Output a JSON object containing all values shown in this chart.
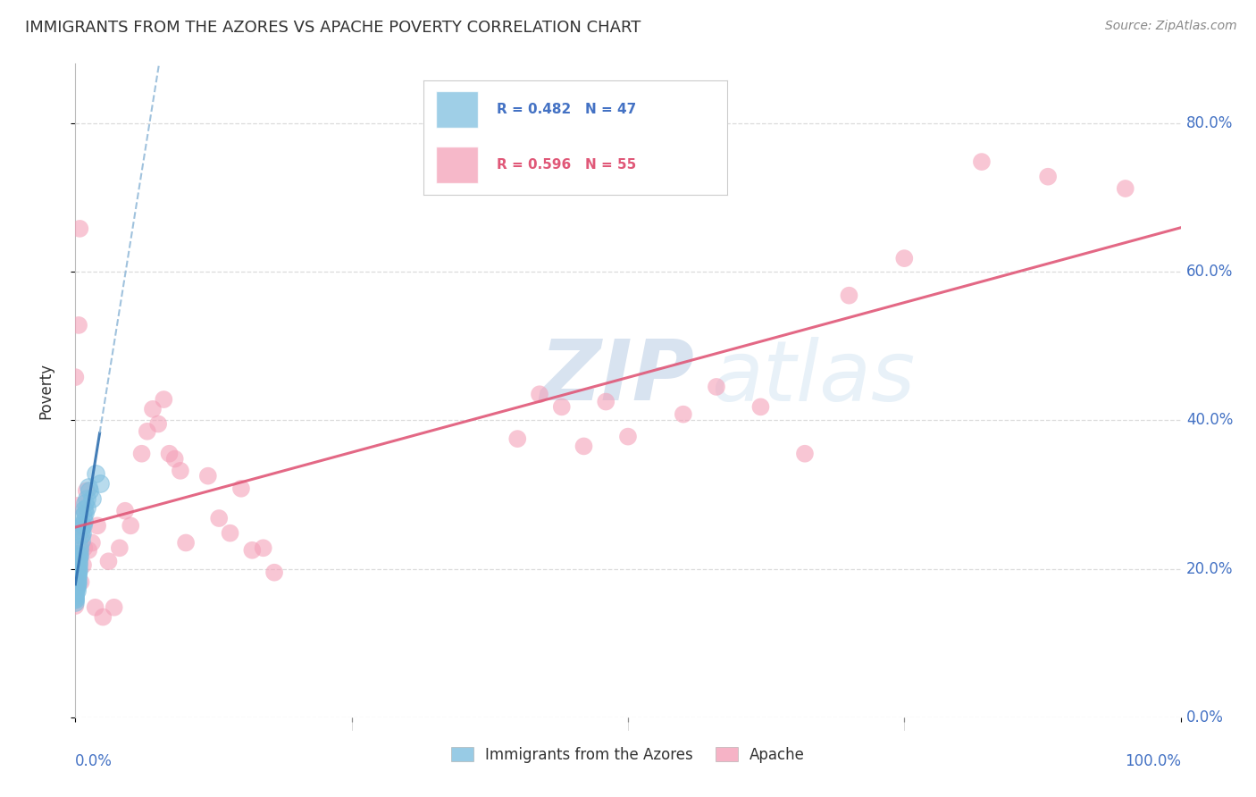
{
  "title": "IMMIGRANTS FROM THE AZORES VS APACHE POVERTY CORRELATION CHART",
  "source_text": "Source: ZipAtlas.com",
  "ylabel": "Poverty",
  "watermark_zip": "ZIP",
  "watermark_atlas": "atlas",
  "legend_blue_label": "Immigrants from the Azores",
  "legend_pink_label": "Apache",
  "R_blue": 0.482,
  "N_blue": 47,
  "R_pink": 0.596,
  "N_pink": 55,
  "blue_color": "#7fbfdf",
  "pink_color": "#f4a0b8",
  "blue_line_color": "#3070b0",
  "blue_dash_color": "#90b8d8",
  "pink_line_color": "#e05878",
  "axis_label_color": "#4472c4",
  "title_color": "#333333",
  "blue_x": [
    0.0,
    0.0,
    0.0,
    0.0,
    0.0,
    0.0,
    0.0,
    0.0,
    0.001,
    0.001,
    0.001,
    0.001,
    0.001,
    0.001,
    0.001,
    0.002,
    0.002,
    0.002,
    0.002,
    0.002,
    0.002,
    0.003,
    0.003,
    0.003,
    0.003,
    0.003,
    0.004,
    0.004,
    0.004,
    0.005,
    0.005,
    0.005,
    0.006,
    0.006,
    0.007,
    0.007,
    0.008,
    0.008,
    0.009,
    0.009,
    0.01,
    0.01,
    0.012,
    0.013,
    0.015,
    0.018,
    0.022
  ],
  "blue_y": [
    0.165,
    0.158,
    0.17,
    0.16,
    0.155,
    0.162,
    0.168,
    0.172,
    0.18,
    0.19,
    0.175,
    0.185,
    0.178,
    0.183,
    0.17,
    0.195,
    0.2,
    0.188,
    0.205,
    0.192,
    0.182,
    0.21,
    0.22,
    0.215,
    0.205,
    0.198,
    0.23,
    0.225,
    0.218,
    0.245,
    0.238,
    0.252,
    0.26,
    0.248,
    0.272,
    0.258,
    0.28,
    0.265,
    0.288,
    0.275,
    0.295,
    0.282,
    0.31,
    0.305,
    0.295,
    0.328,
    0.315
  ],
  "pink_x": [
    0.0,
    0.0,
    0.0,
    0.001,
    0.001,
    0.002,
    0.003,
    0.003,
    0.004,
    0.005,
    0.006,
    0.007,
    0.008,
    0.01,
    0.012,
    0.015,
    0.018,
    0.02,
    0.025,
    0.03,
    0.035,
    0.04,
    0.045,
    0.05,
    0.06,
    0.065,
    0.07,
    0.075,
    0.08,
    0.085,
    0.09,
    0.095,
    0.1,
    0.12,
    0.13,
    0.14,
    0.15,
    0.16,
    0.17,
    0.18,
    0.4,
    0.42,
    0.44,
    0.46,
    0.48,
    0.5,
    0.55,
    0.58,
    0.62,
    0.66,
    0.7,
    0.75,
    0.82,
    0.88,
    0.95
  ],
  "pink_y": [
    0.15,
    0.185,
    0.458,
    0.175,
    0.22,
    0.285,
    0.528,
    0.245,
    0.658,
    0.182,
    0.255,
    0.205,
    0.228,
    0.305,
    0.225,
    0.235,
    0.148,
    0.258,
    0.135,
    0.21,
    0.148,
    0.228,
    0.278,
    0.258,
    0.355,
    0.385,
    0.415,
    0.395,
    0.428,
    0.355,
    0.348,
    0.332,
    0.235,
    0.325,
    0.268,
    0.248,
    0.308,
    0.225,
    0.228,
    0.195,
    0.375,
    0.435,
    0.418,
    0.365,
    0.425,
    0.378,
    0.408,
    0.445,
    0.418,
    0.355,
    0.568,
    0.618,
    0.748,
    0.728,
    0.712
  ],
  "ylim": [
    0.0,
    0.88
  ],
  "xlim": [
    0.0,
    1.0
  ],
  "yticks": [
    0.0,
    0.2,
    0.4,
    0.6,
    0.8
  ],
  "ytick_labels": [
    "0.0%",
    "20.0%",
    "40.0%",
    "60.0%",
    "80.0%"
  ],
  "grid_color": "#d8d8d8",
  "background_color": "#ffffff",
  "legend_box_color": "#f0f0f0"
}
